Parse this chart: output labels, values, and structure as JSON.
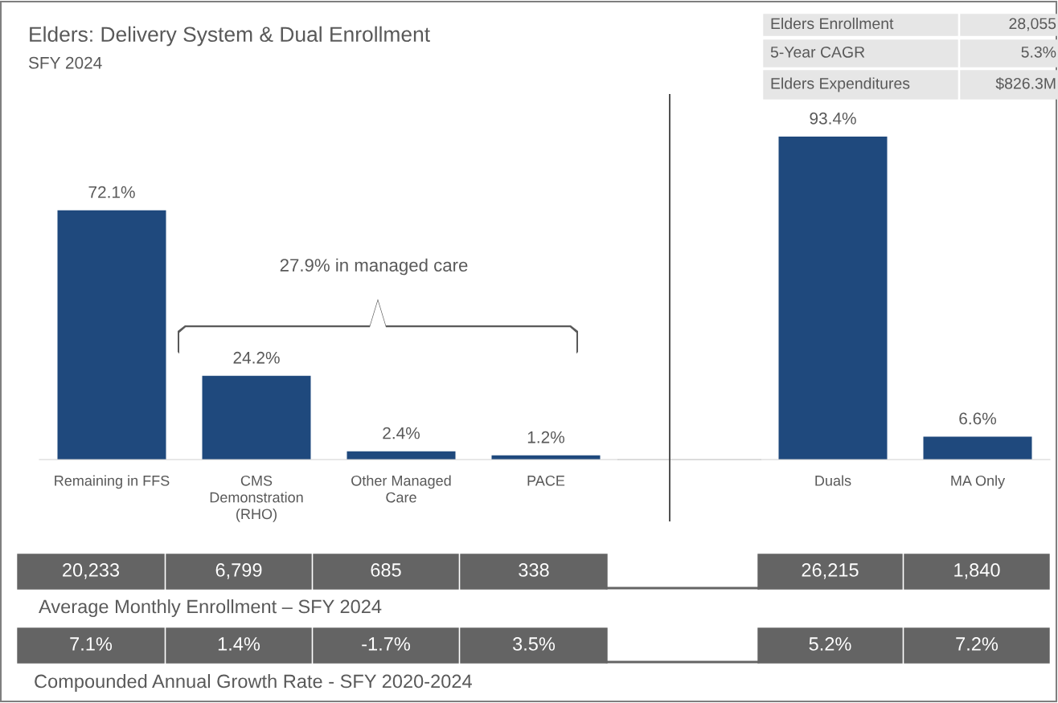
{
  "chart_data": [
    {
      "type": "bar",
      "title": "Elders: Delivery System & Dual Enrollment",
      "subtitle": "SFY 2024",
      "categories": [
        "Remaining in FFS",
        "CMS Demonstration (RHO)",
        "Other Managed Care",
        "PACE"
      ],
      "values": [
        72.1,
        24.2,
        2.4,
        1.2
      ],
      "color": "#1f497d",
      "data_labels": true,
      "value_labels": [
        "72.1%",
        "24.2%",
        "2.4%",
        "1.2%"
      ],
      "grid": false,
      "legend": false,
      "annotations": [
        "27.9% in managed care"
      ]
    },
    {
      "type": "bar",
      "categories": [
        "Duals",
        "MA Only"
      ],
      "values": [
        93.4,
        6.6
      ],
      "color": "#1f497d",
      "data_labels": true,
      "value_labels": [
        "93.4%",
        "6.6%"
      ],
      "grid": false,
      "legend": false
    },
    {
      "type": "other",
      "annotations": [
        "Elders Enrollment",
        "28,055",
        "5-Year CAGR",
        "5.3%",
        "Elders Expenditures",
        "$826.3M"
      ]
    },
    {
      "type": "other",
      "title": "Average Monthly Enrollment – SFY 2024",
      "annotations": [
        "20,233",
        "6,799",
        "685",
        "338",
        "26,215",
        "1,840"
      ]
    },
    {
      "type": "other",
      "title": "Compounded Annual Growth Rate - SFY 2020-2024",
      "annotations": [
        "7.1%",
        "1.4%",
        "-1.7%",
        "3.5%",
        "5.2%",
        "7.2%"
      ]
    }
  ]
}
